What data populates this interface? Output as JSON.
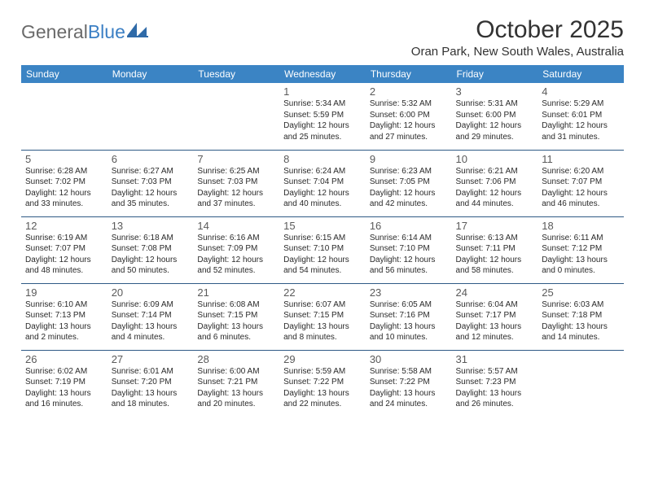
{
  "logo": {
    "general": "General",
    "blue": "Blue"
  },
  "title": "October 2025",
  "location": "Oran Park, New South Wales, Australia",
  "colors": {
    "header_bg": "#3b84c4",
    "header_text": "#ffffff",
    "row_border": "#2f5a85",
    "title_color": "#323232",
    "day_text": "#2a2a2a",
    "daynum_color": "#5a5a5a"
  },
  "dayHeaders": [
    "Sunday",
    "Monday",
    "Tuesday",
    "Wednesday",
    "Thursday",
    "Friday",
    "Saturday"
  ],
  "weeks": [
    [
      null,
      null,
      null,
      {
        "n": "1",
        "sr": "Sunrise: 5:34 AM",
        "ss": "Sunset: 5:59 PM",
        "d1": "Daylight: 12 hours",
        "d2": "and 25 minutes."
      },
      {
        "n": "2",
        "sr": "Sunrise: 5:32 AM",
        "ss": "Sunset: 6:00 PM",
        "d1": "Daylight: 12 hours",
        "d2": "and 27 minutes."
      },
      {
        "n": "3",
        "sr": "Sunrise: 5:31 AM",
        "ss": "Sunset: 6:00 PM",
        "d1": "Daylight: 12 hours",
        "d2": "and 29 minutes."
      },
      {
        "n": "4",
        "sr": "Sunrise: 5:29 AM",
        "ss": "Sunset: 6:01 PM",
        "d1": "Daylight: 12 hours",
        "d2": "and 31 minutes."
      }
    ],
    [
      {
        "n": "5",
        "sr": "Sunrise: 6:28 AM",
        "ss": "Sunset: 7:02 PM",
        "d1": "Daylight: 12 hours",
        "d2": "and 33 minutes."
      },
      {
        "n": "6",
        "sr": "Sunrise: 6:27 AM",
        "ss": "Sunset: 7:03 PM",
        "d1": "Daylight: 12 hours",
        "d2": "and 35 minutes."
      },
      {
        "n": "7",
        "sr": "Sunrise: 6:25 AM",
        "ss": "Sunset: 7:03 PM",
        "d1": "Daylight: 12 hours",
        "d2": "and 37 minutes."
      },
      {
        "n": "8",
        "sr": "Sunrise: 6:24 AM",
        "ss": "Sunset: 7:04 PM",
        "d1": "Daylight: 12 hours",
        "d2": "and 40 minutes."
      },
      {
        "n": "9",
        "sr": "Sunrise: 6:23 AM",
        "ss": "Sunset: 7:05 PM",
        "d1": "Daylight: 12 hours",
        "d2": "and 42 minutes."
      },
      {
        "n": "10",
        "sr": "Sunrise: 6:21 AM",
        "ss": "Sunset: 7:06 PM",
        "d1": "Daylight: 12 hours",
        "d2": "and 44 minutes."
      },
      {
        "n": "11",
        "sr": "Sunrise: 6:20 AM",
        "ss": "Sunset: 7:07 PM",
        "d1": "Daylight: 12 hours",
        "d2": "and 46 minutes."
      }
    ],
    [
      {
        "n": "12",
        "sr": "Sunrise: 6:19 AM",
        "ss": "Sunset: 7:07 PM",
        "d1": "Daylight: 12 hours",
        "d2": "and 48 minutes."
      },
      {
        "n": "13",
        "sr": "Sunrise: 6:18 AM",
        "ss": "Sunset: 7:08 PM",
        "d1": "Daylight: 12 hours",
        "d2": "and 50 minutes."
      },
      {
        "n": "14",
        "sr": "Sunrise: 6:16 AM",
        "ss": "Sunset: 7:09 PM",
        "d1": "Daylight: 12 hours",
        "d2": "and 52 minutes."
      },
      {
        "n": "15",
        "sr": "Sunrise: 6:15 AM",
        "ss": "Sunset: 7:10 PM",
        "d1": "Daylight: 12 hours",
        "d2": "and 54 minutes."
      },
      {
        "n": "16",
        "sr": "Sunrise: 6:14 AM",
        "ss": "Sunset: 7:10 PM",
        "d1": "Daylight: 12 hours",
        "d2": "and 56 minutes."
      },
      {
        "n": "17",
        "sr": "Sunrise: 6:13 AM",
        "ss": "Sunset: 7:11 PM",
        "d1": "Daylight: 12 hours",
        "d2": "and 58 minutes."
      },
      {
        "n": "18",
        "sr": "Sunrise: 6:11 AM",
        "ss": "Sunset: 7:12 PM",
        "d1": "Daylight: 13 hours",
        "d2": "and 0 minutes."
      }
    ],
    [
      {
        "n": "19",
        "sr": "Sunrise: 6:10 AM",
        "ss": "Sunset: 7:13 PM",
        "d1": "Daylight: 13 hours",
        "d2": "and 2 minutes."
      },
      {
        "n": "20",
        "sr": "Sunrise: 6:09 AM",
        "ss": "Sunset: 7:14 PM",
        "d1": "Daylight: 13 hours",
        "d2": "and 4 minutes."
      },
      {
        "n": "21",
        "sr": "Sunrise: 6:08 AM",
        "ss": "Sunset: 7:15 PM",
        "d1": "Daylight: 13 hours",
        "d2": "and 6 minutes."
      },
      {
        "n": "22",
        "sr": "Sunrise: 6:07 AM",
        "ss": "Sunset: 7:15 PM",
        "d1": "Daylight: 13 hours",
        "d2": "and 8 minutes."
      },
      {
        "n": "23",
        "sr": "Sunrise: 6:05 AM",
        "ss": "Sunset: 7:16 PM",
        "d1": "Daylight: 13 hours",
        "d2": "and 10 minutes."
      },
      {
        "n": "24",
        "sr": "Sunrise: 6:04 AM",
        "ss": "Sunset: 7:17 PM",
        "d1": "Daylight: 13 hours",
        "d2": "and 12 minutes."
      },
      {
        "n": "25",
        "sr": "Sunrise: 6:03 AM",
        "ss": "Sunset: 7:18 PM",
        "d1": "Daylight: 13 hours",
        "d2": "and 14 minutes."
      }
    ],
    [
      {
        "n": "26",
        "sr": "Sunrise: 6:02 AM",
        "ss": "Sunset: 7:19 PM",
        "d1": "Daylight: 13 hours",
        "d2": "and 16 minutes."
      },
      {
        "n": "27",
        "sr": "Sunrise: 6:01 AM",
        "ss": "Sunset: 7:20 PM",
        "d1": "Daylight: 13 hours",
        "d2": "and 18 minutes."
      },
      {
        "n": "28",
        "sr": "Sunrise: 6:00 AM",
        "ss": "Sunset: 7:21 PM",
        "d1": "Daylight: 13 hours",
        "d2": "and 20 minutes."
      },
      {
        "n": "29",
        "sr": "Sunrise: 5:59 AM",
        "ss": "Sunset: 7:22 PM",
        "d1": "Daylight: 13 hours",
        "d2": "and 22 minutes."
      },
      {
        "n": "30",
        "sr": "Sunrise: 5:58 AM",
        "ss": "Sunset: 7:22 PM",
        "d1": "Daylight: 13 hours",
        "d2": "and 24 minutes."
      },
      {
        "n": "31",
        "sr": "Sunrise: 5:57 AM",
        "ss": "Sunset: 7:23 PM",
        "d1": "Daylight: 13 hours",
        "d2": "and 26 minutes."
      },
      null
    ]
  ]
}
